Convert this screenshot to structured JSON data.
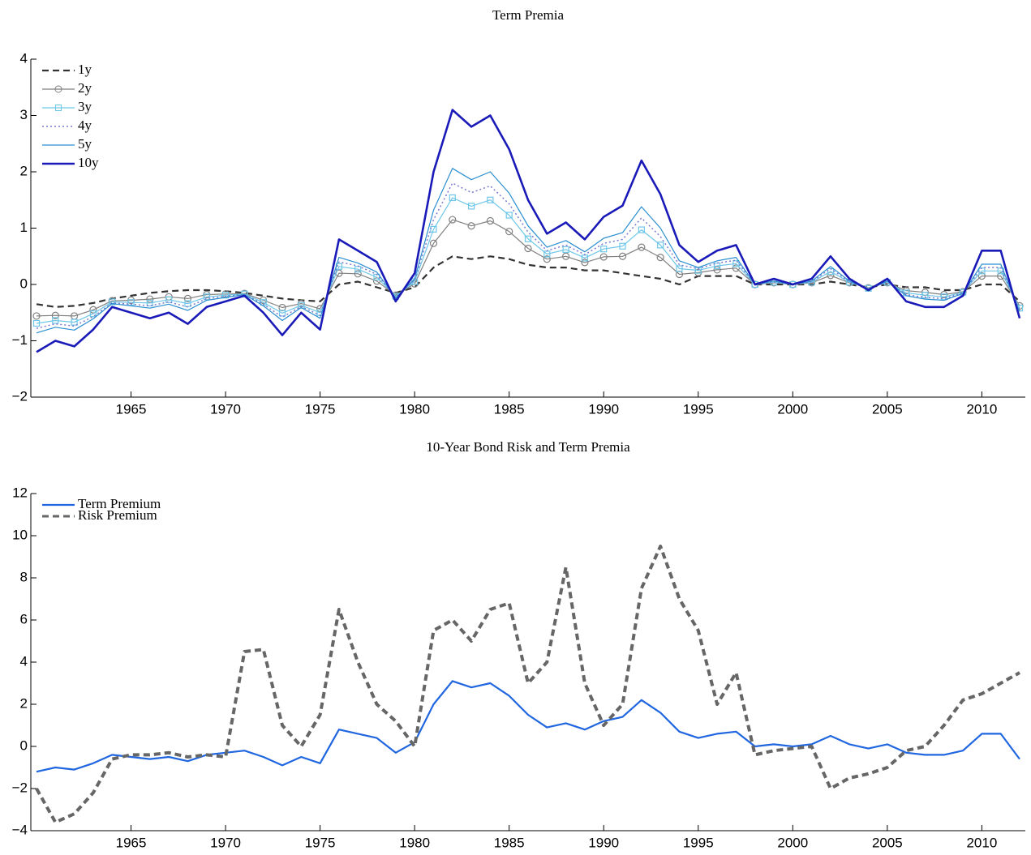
{
  "chart_data": [
    {
      "type": "line",
      "title": "Term Premia",
      "legend": "upper left",
      "font": "serif",
      "x": [
        1960,
        1961,
        1962,
        1963,
        1964,
        1965,
        1966,
        1967,
        1968,
        1969,
        1970,
        1971,
        1972,
        1973,
        1974,
        1975,
        1976,
        1977,
        1978,
        1979,
        1980,
        1981,
        1982,
        1983,
        1984,
        1985,
        1986,
        1987,
        1988,
        1989,
        1990,
        1991,
        1992,
        1993,
        1994,
        1995,
        1996,
        1997,
        1998,
        1999,
        2000,
        2001,
        2002,
        2003,
        2004,
        2005,
        2006,
        2007,
        2008,
        2009,
        2010,
        2011,
        2012
      ],
      "xlim": [
        1959.7,
        2012.3
      ],
      "xticks": [
        1965,
        1970,
        1975,
        1980,
        1985,
        1990,
        1995,
        2000,
        2005,
        2010
      ],
      "ylim": [
        -2,
        4
      ],
      "yticks": [
        {
          "value": -2,
          "label": "−2"
        },
        {
          "value": -1,
          "label": "−1"
        },
        0,
        1,
        2,
        3,
        4
      ],
      "series": [
        {
          "name": "1y",
          "color": "#333333",
          "style": "dashed",
          "width": 2.2,
          "values": [
            -0.35,
            -0.4,
            -0.38,
            -0.33,
            -0.25,
            -0.2,
            -0.15,
            -0.12,
            -0.1,
            -0.1,
            -0.12,
            -0.15,
            -0.2,
            -0.25,
            -0.28,
            -0.3,
            0.0,
            0.05,
            -0.05,
            -0.15,
            -0.05,
            0.3,
            0.5,
            0.45,
            0.5,
            0.45,
            0.35,
            0.3,
            0.3,
            0.25,
            0.25,
            0.2,
            0.15,
            0.1,
            0.0,
            0.15,
            0.15,
            0.15,
            0.0,
            0.0,
            0.0,
            0.0,
            0.05,
            0.0,
            -0.05,
            0.0,
            -0.05,
            -0.05,
            -0.1,
            -0.1,
            0.0,
            0.0,
            -0.3
          ]
        },
        {
          "name": "2y",
          "color": "#808080",
          "style": "solid",
          "marker": "circle",
          "width": 1.2,
          "values": [
            -0.56,
            -0.55,
            -0.56,
            -0.45,
            -0.29,
            -0.28,
            -0.26,
            -0.22,
            -0.25,
            -0.18,
            -0.17,
            -0.16,
            -0.28,
            -0.41,
            -0.34,
            -0.43,
            0.2,
            0.19,
            0.06,
            -0.19,
            0.01,
            0.73,
            1.15,
            1.04,
            1.13,
            0.94,
            0.64,
            0.45,
            0.5,
            0.39,
            0.49,
            0.5,
            0.66,
            0.48,
            0.18,
            0.21,
            0.26,
            0.29,
            0.0,
            0.03,
            0.0,
            0.03,
            0.16,
            0.03,
            -0.06,
            0.03,
            -0.11,
            -0.14,
            -0.18,
            -0.13,
            0.15,
            0.15,
            -0.38
          ]
        },
        {
          "name": "3y",
          "color": "#6ec6e8",
          "style": "solid",
          "marker": "square",
          "width": 1.2,
          "values": [
            -0.69,
            -0.64,
            -0.67,
            -0.52,
            -0.31,
            -0.32,
            -0.33,
            -0.27,
            -0.34,
            -0.22,
            -0.19,
            -0.17,
            -0.32,
            -0.51,
            -0.37,
            -0.5,
            0.32,
            0.27,
            0.13,
            -0.21,
            0.05,
            0.98,
            1.54,
            1.39,
            1.5,
            1.23,
            0.81,
            0.54,
            0.62,
            0.47,
            0.63,
            0.68,
            0.97,
            0.7,
            0.28,
            0.25,
            0.33,
            0.37,
            0.0,
            0.04,
            0.0,
            0.04,
            0.23,
            0.04,
            -0.07,
            0.04,
            -0.15,
            -0.19,
            -0.22,
            -0.14,
            0.24,
            0.24,
            -0.42
          ]
        },
        {
          "name": "4y",
          "color": "#7a7ad0",
          "style": "dotted",
          "width": 1.5,
          "values": [
            -0.78,
            -0.7,
            -0.74,
            -0.57,
            -0.33,
            -0.35,
            -0.38,
            -0.31,
            -0.4,
            -0.25,
            -0.21,
            -0.18,
            -0.35,
            -0.58,
            -0.39,
            -0.55,
            0.4,
            0.33,
            0.18,
            -0.23,
            0.08,
            1.15,
            1.8,
            1.63,
            1.75,
            1.43,
            0.93,
            0.6,
            0.7,
            0.53,
            0.73,
            0.8,
            1.18,
            0.85,
            0.35,
            0.28,
            0.38,
            0.43,
            0.0,
            0.05,
            0.0,
            0.05,
            0.28,
            0.05,
            -0.08,
            0.05,
            -0.18,
            -0.23,
            -0.25,
            -0.15,
            0.3,
            0.3,
            -0.45
          ]
        },
        {
          "name": "5y",
          "color": "#2b8fd0",
          "style": "solid",
          "width": 1.2,
          "values": [
            -0.86,
            -0.76,
            -0.81,
            -0.61,
            -0.34,
            -0.38,
            -0.42,
            -0.35,
            -0.46,
            -0.28,
            -0.23,
            -0.18,
            -0.38,
            -0.64,
            -0.41,
            -0.6,
            0.48,
            0.38,
            0.22,
            -0.24,
            0.1,
            1.32,
            2.06,
            1.86,
            2.0,
            1.62,
            1.04,
            0.66,
            0.78,
            0.58,
            0.82,
            0.92,
            1.38,
            1.0,
            0.42,
            0.3,
            0.42,
            0.48,
            0.0,
            0.06,
            0.0,
            0.06,
            0.32,
            0.06,
            -0.08,
            0.06,
            -0.2,
            -0.26,
            -0.28,
            -0.16,
            0.36,
            0.36,
            -0.48
          ]
        },
        {
          "name": "10y",
          "color": "#1a1ab8",
          "style": "solid",
          "width": 2.6,
          "values": [
            -1.2,
            -1.0,
            -1.1,
            -0.8,
            -0.4,
            -0.5,
            -0.6,
            -0.5,
            -0.7,
            -0.4,
            -0.3,
            -0.2,
            -0.5,
            -0.9,
            -0.5,
            -0.8,
            0.8,
            0.6,
            0.4,
            -0.3,
            0.2,
            2.0,
            3.1,
            2.8,
            3.0,
            2.4,
            1.5,
            0.9,
            1.1,
            0.8,
            1.2,
            1.4,
            2.2,
            1.6,
            0.7,
            0.4,
            0.6,
            0.7,
            0.0,
            0.1,
            0.0,
            0.1,
            0.5,
            0.1,
            -0.1,
            0.1,
            -0.3,
            -0.4,
            -0.4,
            -0.2,
            0.6,
            0.6,
            -0.6
          ]
        }
      ]
    },
    {
      "type": "line",
      "title": "10-Year Bond Risk and Term Premia",
      "legend": "upper left",
      "font": "serif",
      "x": [
        1960,
        1961,
        1962,
        1963,
        1964,
        1965,
        1966,
        1967,
        1968,
        1969,
        1970,
        1971,
        1972,
        1973,
        1974,
        1975,
        1976,
        1977,
        1978,
        1979,
        1980,
        1981,
        1982,
        1983,
        1984,
        1985,
        1986,
        1987,
        1988,
        1989,
        1990,
        1991,
        1992,
        1993,
        1994,
        1995,
        1996,
        1997,
        1998,
        1999,
        2000,
        2001,
        2002,
        2003,
        2004,
        2005,
        2006,
        2007,
        2008,
        2009,
        2010,
        2011,
        2012
      ],
      "xlim": [
        1959.7,
        2012.3
      ],
      "xticks": [
        1965,
        1970,
        1975,
        1980,
        1985,
        1990,
        1995,
        2000,
        2005,
        2010
      ],
      "ylim": [
        -4,
        12
      ],
      "yticks": [
        {
          "value": -4,
          "label": "−4"
        },
        {
          "value": -2,
          "label": "−2"
        },
        0,
        2,
        4,
        6,
        8,
        10,
        12
      ],
      "series": [
        {
          "name": "Term Premium",
          "color": "#1f66e0",
          "style": "solid",
          "width": 2.2,
          "values": [
            -1.2,
            -1.0,
            -1.1,
            -0.8,
            -0.4,
            -0.5,
            -0.6,
            -0.5,
            -0.7,
            -0.4,
            -0.3,
            -0.2,
            -0.5,
            -0.9,
            -0.5,
            -0.8,
            0.8,
            0.6,
            0.4,
            -0.3,
            0.2,
            2.0,
            3.1,
            2.8,
            3.0,
            2.4,
            1.5,
            0.9,
            1.1,
            0.8,
            1.2,
            1.4,
            2.2,
            1.6,
            0.7,
            0.4,
            0.6,
            0.7,
            0.0,
            0.1,
            0.0,
            0.1,
            0.5,
            0.1,
            -0.1,
            0.1,
            -0.3,
            -0.4,
            -0.4,
            -0.2,
            0.6,
            0.6,
            -0.6
          ]
        },
        {
          "name": "Risk Premium",
          "color": "#666666",
          "style": "dashed",
          "width": 4,
          "values": [
            -2.0,
            -3.6,
            -3.2,
            -2.2,
            -0.6,
            -0.4,
            -0.4,
            -0.3,
            -0.5,
            -0.4,
            -0.5,
            4.5,
            4.6,
            1.0,
            0.0,
            1.5,
            6.5,
            4.0,
            2.0,
            1.2,
            0.0,
            5.5,
            6.0,
            5.0,
            6.5,
            6.8,
            3.0,
            4.0,
            8.5,
            3.0,
            1.0,
            2.0,
            7.5,
            9.5,
            7.0,
            5.5,
            2.0,
            3.5,
            -0.4,
            -0.2,
            -0.1,
            0.0,
            -2.0,
            -1.5,
            -1.3,
            -1.0,
            -0.2,
            0.0,
            1.0,
            2.2,
            2.5,
            3.0,
            3.5
          ]
        }
      ]
    }
  ]
}
